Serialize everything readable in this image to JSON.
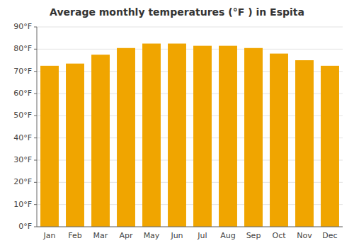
{
  "chart_data": {
    "type": "bar",
    "title": "Average monthly temperatures (°F ) in Espita",
    "categories": [
      "Jan",
      "Feb",
      "Mar",
      "Apr",
      "May",
      "Jun",
      "Jul",
      "Aug",
      "Sep",
      "Oct",
      "Nov",
      "Dec"
    ],
    "values": [
      72.5,
      73.5,
      77.5,
      80.5,
      82.5,
      82.5,
      81.5,
      81.5,
      80.5,
      78.0,
      75.0,
      72.5
    ],
    "color": "#F0A500",
    "ylim": [
      0,
      90
    ],
    "yticks": [
      {
        "value": 0,
        "label": "0°F"
      },
      {
        "value": 10,
        "label": "10°F"
      },
      {
        "value": 20,
        "label": "20°F"
      },
      {
        "value": 30,
        "label": "30°F"
      },
      {
        "value": 40,
        "label": "40°F"
      },
      {
        "value": 50,
        "label": "50°F"
      },
      {
        "value": 60,
        "label": "60°F"
      },
      {
        "value": 70,
        "label": "70°F"
      },
      {
        "value": 80,
        "label": "80°F"
      },
      {
        "value": 90,
        "label": "90°F"
      }
    ],
    "grid": true
  }
}
